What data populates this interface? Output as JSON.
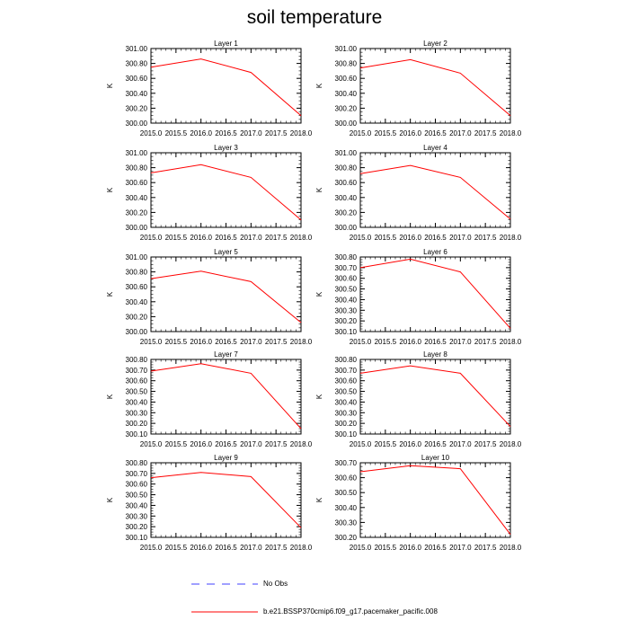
{
  "title": "soil temperature",
  "legend": {
    "obs_label": "No Obs",
    "model_label": "b.e21.BSSP370cmip6.f09_g17.pacemaker_pacific.008",
    "obs_color": "#4040ff",
    "model_color": "#ff0000"
  },
  "chart_data": [
    {
      "type": "line",
      "title": "Layer 1",
      "ylabel": "K",
      "xlim": [
        2015.0,
        2018.0
      ],
      "x_ticks": [
        "2015.0",
        "2015.5",
        "2016.0",
        "2016.5",
        "2017.0",
        "2017.5",
        "2018.0"
      ],
      "ylim": [
        300.0,
        301.0
      ],
      "y_ticks": [
        "300.00",
        "300.20",
        "300.40",
        "300.60",
        "300.80",
        "301.00"
      ],
      "series": [
        {
          "name": "b.e21.BSSP370cmip6.f09_g17.pacemaker_pacific.008",
          "x": [
            2015,
            2016,
            2017,
            2018
          ],
          "y": [
            300.75,
            300.86,
            300.68,
            300.1
          ]
        }
      ]
    },
    {
      "type": "line",
      "title": "Layer 2",
      "ylabel": "K",
      "xlim": [
        2015.0,
        2018.0
      ],
      "x_ticks": [
        "2015.0",
        "2015.5",
        "2016.0",
        "2016.5",
        "2017.0",
        "2017.5",
        "2018.0"
      ],
      "ylim": [
        300.0,
        301.0
      ],
      "y_ticks": [
        "300.00",
        "300.20",
        "300.40",
        "300.60",
        "300.80",
        "301.00"
      ],
      "series": [
        {
          "name": "b.e21.BSSP370cmip6.f09_g17.pacemaker_pacific.008",
          "x": [
            2015,
            2016,
            2017,
            2018
          ],
          "y": [
            300.74,
            300.85,
            300.67,
            300.1
          ]
        }
      ]
    },
    {
      "type": "line",
      "title": "Layer 3",
      "ylabel": "K",
      "xlim": [
        2015.0,
        2018.0
      ],
      "x_ticks": [
        "2015.0",
        "2015.5",
        "2016.0",
        "2016.5",
        "2017.0",
        "2017.5",
        "2018.0"
      ],
      "ylim": [
        300.0,
        301.0
      ],
      "y_ticks": [
        "300.00",
        "300.20",
        "300.40",
        "300.60",
        "300.80",
        "301.00"
      ],
      "series": [
        {
          "name": "b.e21.BSSP370cmip6.f09_g17.pacemaker_pacific.008",
          "x": [
            2015,
            2016,
            2017,
            2018
          ],
          "y": [
            300.73,
            300.84,
            300.67,
            300.1
          ]
        }
      ]
    },
    {
      "type": "line",
      "title": "Layer 4",
      "ylabel": "K",
      "xlim": [
        2015.0,
        2018.0
      ],
      "x_ticks": [
        "2015.0",
        "2015.5",
        "2016.0",
        "2016.5",
        "2017.0",
        "2017.5",
        "2018.0"
      ],
      "ylim": [
        300.0,
        301.0
      ],
      "y_ticks": [
        "300.00",
        "300.20",
        "300.40",
        "300.60",
        "300.80",
        "301.00"
      ],
      "series": [
        {
          "name": "b.e21.BSSP370cmip6.f09_g17.pacemaker_pacific.008",
          "x": [
            2015,
            2016,
            2017,
            2018
          ],
          "y": [
            300.72,
            300.83,
            300.67,
            300.11
          ]
        }
      ]
    },
    {
      "type": "line",
      "title": "Layer 5",
      "ylabel": "K",
      "xlim": [
        2015.0,
        2018.0
      ],
      "x_ticks": [
        "2015.0",
        "2015.5",
        "2016.0",
        "2016.5",
        "2017.0",
        "2017.5",
        "2018.0"
      ],
      "ylim": [
        300.0,
        301.0
      ],
      "y_ticks": [
        "300.00",
        "300.20",
        "300.40",
        "300.60",
        "300.80",
        "301.00"
      ],
      "series": [
        {
          "name": "b.e21.BSSP370cmip6.f09_g17.pacemaker_pacific.008",
          "x": [
            2015,
            2016,
            2017,
            2018
          ],
          "y": [
            300.71,
            300.81,
            300.67,
            300.12
          ]
        }
      ]
    },
    {
      "type": "line",
      "title": "Layer 6",
      "ylabel": "K",
      "xlim": [
        2015.0,
        2018.0
      ],
      "x_ticks": [
        "2015.0",
        "2015.5",
        "2016.0",
        "2016.5",
        "2017.0",
        "2017.5",
        "2018.0"
      ],
      "ylim": [
        300.1,
        300.8
      ],
      "y_ticks": [
        "300.10",
        "300.20",
        "300.30",
        "300.40",
        "300.50",
        "300.60",
        "300.70",
        "300.80"
      ],
      "series": [
        {
          "name": "b.e21.BSSP370cmip6.f09_g17.pacemaker_pacific.008",
          "x": [
            2015,
            2016,
            2017,
            2018
          ],
          "y": [
            300.7,
            300.78,
            300.66,
            300.13
          ]
        }
      ]
    },
    {
      "type": "line",
      "title": "Layer 7",
      "ylabel": "K",
      "xlim": [
        2015.0,
        2018.0
      ],
      "x_ticks": [
        "2015.0",
        "2015.5",
        "2016.0",
        "2016.5",
        "2017.0",
        "2017.5",
        "2018.0"
      ],
      "ylim": [
        300.1,
        300.8
      ],
      "y_ticks": [
        "300.10",
        "300.20",
        "300.30",
        "300.40",
        "300.50",
        "300.60",
        "300.70",
        "300.80"
      ],
      "series": [
        {
          "name": "b.e21.BSSP370cmip6.f09_g17.pacemaker_pacific.008",
          "x": [
            2015,
            2016,
            2017,
            2018
          ],
          "y": [
            300.69,
            300.76,
            300.67,
            300.15
          ]
        }
      ]
    },
    {
      "type": "line",
      "title": "Layer 8",
      "ylabel": "K",
      "xlim": [
        2015.0,
        2018.0
      ],
      "x_ticks": [
        "2015.0",
        "2015.5",
        "2016.0",
        "2016.5",
        "2017.0",
        "2017.5",
        "2018.0"
      ],
      "ylim": [
        300.1,
        300.8
      ],
      "y_ticks": [
        "300.10",
        "300.20",
        "300.30",
        "300.40",
        "300.50",
        "300.60",
        "300.70",
        "300.80"
      ],
      "series": [
        {
          "name": "b.e21.BSSP370cmip6.f09_g17.pacemaker_pacific.008",
          "x": [
            2015,
            2016,
            2017,
            2018
          ],
          "y": [
            300.67,
            300.74,
            300.67,
            300.17
          ]
        }
      ]
    },
    {
      "type": "line",
      "title": "Layer 9",
      "ylabel": "K",
      "xlim": [
        2015.0,
        2018.0
      ],
      "x_ticks": [
        "2015.0",
        "2015.5",
        "2016.0",
        "2016.5",
        "2017.0",
        "2017.5",
        "2018.0"
      ],
      "ylim": [
        300.1,
        300.8
      ],
      "y_ticks": [
        "300.10",
        "300.20",
        "300.30",
        "300.40",
        "300.50",
        "300.60",
        "300.70",
        "300.80"
      ],
      "series": [
        {
          "name": "b.e21.BSSP370cmip6.f09_g17.pacemaker_pacific.008",
          "x": [
            2015,
            2016,
            2017,
            2018
          ],
          "y": [
            300.66,
            300.71,
            300.67,
            300.19
          ]
        }
      ]
    },
    {
      "type": "line",
      "title": "Layer 10",
      "ylabel": "K",
      "xlim": [
        2015.0,
        2018.0
      ],
      "x_ticks": [
        "2015.0",
        "2015.5",
        "2016.0",
        "2016.5",
        "2017.0",
        "2017.5",
        "2018.0"
      ],
      "ylim": [
        300.2,
        300.7
      ],
      "y_ticks": [
        "300.20",
        "300.30",
        "300.40",
        "300.50",
        "300.60",
        "300.70"
      ],
      "series": [
        {
          "name": "b.e21.BSSP370cmip6.f09_g17.pacemaker_pacific.008",
          "x": [
            2015,
            2016,
            2017,
            2018
          ],
          "y": [
            300.64,
            300.68,
            300.66,
            300.22
          ]
        }
      ]
    }
  ]
}
